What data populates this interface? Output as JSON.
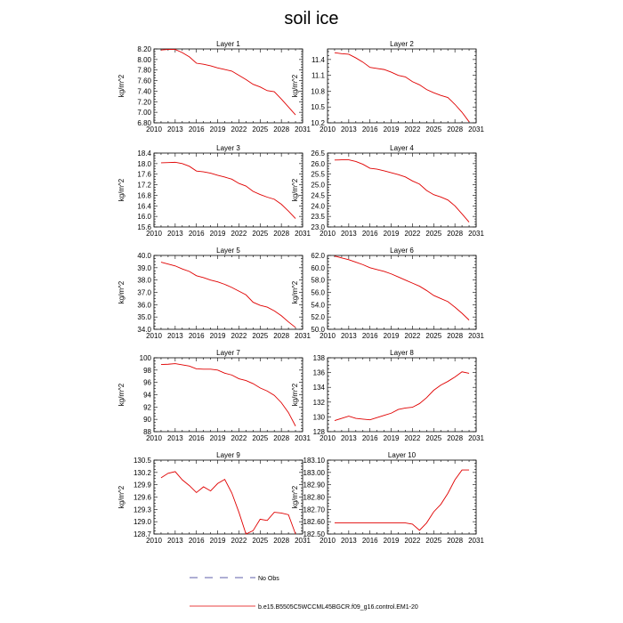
{
  "title": "soil ice",
  "legend": [
    {
      "label": "No Obs",
      "color": "#2b2b8f",
      "dash": true
    },
    {
      "label": "b.e15.B5505C5WCCML45BGCR.f09_g16.control.EM1-20",
      "color": "#e00000",
      "dash": false
    }
  ],
  "chart_data": [
    {
      "type": "line",
      "title": "Layer 1",
      "ylabel": "kg/m^2",
      "xlim": [
        2010,
        2031
      ],
      "xticks": [
        2010,
        2013,
        2016,
        2019,
        2022,
        2025,
        2028,
        2031
      ],
      "ylim": [
        6.8,
        8.2
      ],
      "yticks": [
        "6.80",
        "7.00",
        "7.20",
        "7.40",
        "7.60",
        "7.80",
        "8.00",
        "8.20"
      ],
      "series": [
        {
          "x": [
            2011,
            2012,
            2013,
            2014,
            2015,
            2016,
            2017,
            2018,
            2019,
            2020,
            2021,
            2022,
            2023,
            2024,
            2025,
            2026,
            2027,
            2028,
            2029,
            2030
          ],
          "y": [
            8.18,
            8.19,
            8.19,
            8.13,
            8.05,
            7.93,
            7.91,
            7.88,
            7.84,
            7.81,
            7.78,
            7.7,
            7.62,
            7.53,
            7.48,
            7.41,
            7.39,
            7.25,
            7.1,
            6.95
          ]
        }
      ]
    },
    {
      "type": "line",
      "title": "Layer 2",
      "ylabel": "kg/m^2",
      "xlim": [
        2010,
        2031
      ],
      "xticks": [
        2010,
        2013,
        2016,
        2019,
        2022,
        2025,
        2028,
        2031
      ],
      "ylim": [
        10.2,
        11.6
      ],
      "yticks": [
        "10.2",
        "10.5",
        "10.8",
        "11.1",
        "11.4"
      ],
      "series": [
        {
          "x": [
            2011,
            2012,
            2013,
            2014,
            2015,
            2016,
            2017,
            2018,
            2019,
            2020,
            2021,
            2022,
            2023,
            2024,
            2025,
            2026,
            2027,
            2028,
            2029,
            2030
          ],
          "y": [
            11.53,
            11.51,
            11.5,
            11.43,
            11.35,
            11.25,
            11.23,
            11.21,
            11.16,
            11.1,
            11.07,
            10.98,
            10.92,
            10.83,
            10.77,
            10.72,
            10.68,
            10.55,
            10.4,
            10.22
          ]
        }
      ]
    },
    {
      "type": "line",
      "title": "Layer 3",
      "ylabel": "kg/m^2",
      "xlim": [
        2010,
        2031
      ],
      "xticks": [
        2010,
        2013,
        2016,
        2019,
        2022,
        2025,
        2028,
        2031
      ],
      "ylim": [
        15.6,
        18.4
      ],
      "yticks": [
        "15.6",
        "16.0",
        "16.4",
        "16.8",
        "17.2",
        "17.6",
        "18.0",
        "18.4"
      ],
      "series": [
        {
          "x": [
            2011,
            2012,
            2013,
            2014,
            2015,
            2016,
            2017,
            2018,
            2019,
            2020,
            2021,
            2022,
            2023,
            2024,
            2025,
            2026,
            2027,
            2028,
            2029,
            2030
          ],
          "y": [
            18.03,
            18.04,
            18.05,
            18.0,
            17.9,
            17.72,
            17.69,
            17.64,
            17.56,
            17.49,
            17.41,
            17.25,
            17.15,
            16.95,
            16.83,
            16.73,
            16.65,
            16.46,
            16.2,
            15.92
          ]
        }
      ]
    },
    {
      "type": "line",
      "title": "Layer 4",
      "ylabel": "kg/m^2",
      "xlim": [
        2010,
        2031
      ],
      "xticks": [
        2010,
        2013,
        2016,
        2019,
        2022,
        2025,
        2028,
        2031
      ],
      "ylim": [
        23.0,
        26.5
      ],
      "yticks": [
        "23.0",
        "23.5",
        "24.0",
        "24.5",
        "25.0",
        "25.5",
        "26.0",
        "26.5"
      ],
      "series": [
        {
          "x": [
            2011,
            2012,
            2013,
            2014,
            2015,
            2016,
            2017,
            2018,
            2019,
            2020,
            2021,
            2022,
            2023,
            2024,
            2025,
            2026,
            2027,
            2028,
            2029,
            2030
          ],
          "y": [
            26.17,
            26.18,
            26.18,
            26.1,
            25.97,
            25.78,
            25.74,
            25.66,
            25.57,
            25.48,
            25.37,
            25.18,
            25.03,
            24.73,
            24.53,
            24.42,
            24.28,
            24.0,
            23.62,
            23.23
          ]
        }
      ]
    },
    {
      "type": "line",
      "title": "Layer 5",
      "ylabel": "kg/m^2",
      "xlim": [
        2010,
        2031
      ],
      "xticks": [
        2010,
        2013,
        2016,
        2019,
        2022,
        2025,
        2028,
        2031
      ],
      "ylim": [
        34.0,
        40.0
      ],
      "yticks": [
        "34.0",
        "35.0",
        "36.0",
        "37.0",
        "38.0",
        "39.0",
        "40.0"
      ],
      "series": [
        {
          "x": [
            2011,
            2012,
            2013,
            2014,
            2015,
            2016,
            2017,
            2018,
            2019,
            2020,
            2021,
            2022,
            2023,
            2024,
            2025,
            2026,
            2027,
            2028,
            2029,
            2030
          ],
          "y": [
            39.45,
            39.3,
            39.15,
            38.9,
            38.7,
            38.35,
            38.2,
            38.0,
            37.85,
            37.65,
            37.4,
            37.1,
            36.8,
            36.2,
            35.95,
            35.8,
            35.5,
            35.1,
            34.6,
            34.15
          ]
        }
      ]
    },
    {
      "type": "line",
      "title": "Layer 6",
      "ylabel": "kg/m^2",
      "xlim": [
        2010,
        2031
      ],
      "xticks": [
        2010,
        2013,
        2016,
        2019,
        2022,
        2025,
        2028,
        2031
      ],
      "ylim": [
        50.0,
        62.0
      ],
      "yticks": [
        "50.0",
        "52.0",
        "54.0",
        "56.0",
        "58.0",
        "60.0",
        "62.0"
      ],
      "series": [
        {
          "x": [
            2011,
            2012,
            2013,
            2014,
            2015,
            2016,
            2017,
            2018,
            2019,
            2020,
            2021,
            2022,
            2023,
            2024,
            2025,
            2026,
            2027,
            2028,
            2029,
            2030
          ],
          "y": [
            61.9,
            61.6,
            61.3,
            60.9,
            60.5,
            60.0,
            59.7,
            59.4,
            59.0,
            58.5,
            58.0,
            57.5,
            57.0,
            56.3,
            55.5,
            55.0,
            54.5,
            53.6,
            52.6,
            51.5
          ]
        }
      ]
    },
    {
      "type": "line",
      "title": "Layer 7",
      "ylabel": "kg/m^2",
      "xlim": [
        2010,
        2031
      ],
      "xticks": [
        2010,
        2013,
        2016,
        2019,
        2022,
        2025,
        2028,
        2031
      ],
      "ylim": [
        88,
        100
      ],
      "yticks": [
        "88",
        "90",
        "92",
        "94",
        "96",
        "98",
        "100"
      ],
      "series": [
        {
          "x": [
            2011,
            2012,
            2013,
            2014,
            2015,
            2016,
            2017,
            2018,
            2019,
            2020,
            2021,
            2022,
            2023,
            2024,
            2025,
            2026,
            2027,
            2028,
            2029,
            2030
          ],
          "y": [
            98.9,
            98.95,
            99.05,
            98.85,
            98.65,
            98.2,
            98.15,
            98.15,
            98.0,
            97.5,
            97.2,
            96.6,
            96.3,
            95.8,
            95.1,
            94.6,
            93.9,
            92.7,
            91.1,
            88.9
          ]
        }
      ]
    },
    {
      "type": "line",
      "title": "Layer 8",
      "ylabel": "kg/m^2",
      "xlim": [
        2010,
        2031
      ],
      "xticks": [
        2010,
        2013,
        2016,
        2019,
        2022,
        2025,
        2028,
        2031
      ],
      "ylim": [
        128,
        138
      ],
      "yticks": [
        "128",
        "130",
        "132",
        "134",
        "136",
        "138"
      ],
      "series": [
        {
          "x": [
            2011,
            2012,
            2013,
            2014,
            2015,
            2016,
            2017,
            2018,
            2019,
            2020,
            2021,
            2022,
            2023,
            2024,
            2025,
            2026,
            2027,
            2028,
            2029,
            2030
          ],
          "y": [
            129.5,
            129.8,
            130.1,
            129.8,
            129.7,
            129.6,
            129.9,
            130.2,
            130.5,
            131.0,
            131.2,
            131.3,
            131.8,
            132.6,
            133.6,
            134.3,
            134.8,
            135.4,
            136.1,
            135.9
          ]
        }
      ]
    },
    {
      "type": "line",
      "title": "Layer 9",
      "ylabel": "kg/m^2",
      "xlim": [
        2010,
        2031
      ],
      "xticks": [
        2010,
        2013,
        2016,
        2019,
        2022,
        2025,
        2028,
        2031
      ],
      "ylim": [
        128.7,
        130.5
      ],
      "yticks": [
        "128.7",
        "129.0",
        "129.3",
        "129.6",
        "129.9",
        "130.2",
        "130.5"
      ],
      "series": [
        {
          "x": [
            2011,
            2012,
            2013,
            2014,
            2015,
            2016,
            2017,
            2018,
            2019,
            2020,
            2021,
            2022,
            2023,
            2024,
            2025,
            2026,
            2027,
            2028,
            2029,
            2030
          ],
          "y": [
            130.07,
            130.18,
            130.22,
            130.02,
            129.88,
            129.71,
            129.85,
            129.75,
            129.93,
            130.03,
            129.7,
            129.23,
            128.7,
            128.78,
            129.06,
            129.03,
            129.23,
            129.21,
            129.17,
            128.68
          ]
        }
      ]
    },
    {
      "type": "line",
      "title": "Layer 10",
      "ylabel": "kg/m^2",
      "xlim": [
        2010,
        2031
      ],
      "xticks": [
        2010,
        2013,
        2016,
        2019,
        2022,
        2025,
        2028,
        2031
      ],
      "ylim": [
        182.5,
        183.1
      ],
      "yticks": [
        "182.50",
        "182.60",
        "182.70",
        "182.80",
        "182.90",
        "183.00",
        "183.10"
      ],
      "series": [
        {
          "x": [
            2011,
            2012,
            2013,
            2014,
            2015,
            2016,
            2017,
            2018,
            2019,
            2020,
            2021,
            2022,
            2023,
            2024,
            2025,
            2026,
            2027,
            2028,
            2029,
            2030
          ],
          "y": [
            182.59,
            182.59,
            182.59,
            182.59,
            182.59,
            182.59,
            182.59,
            182.59,
            182.59,
            182.59,
            182.59,
            182.58,
            182.53,
            182.59,
            182.68,
            182.74,
            182.83,
            182.94,
            183.02,
            183.02
          ]
        }
      ]
    }
  ]
}
